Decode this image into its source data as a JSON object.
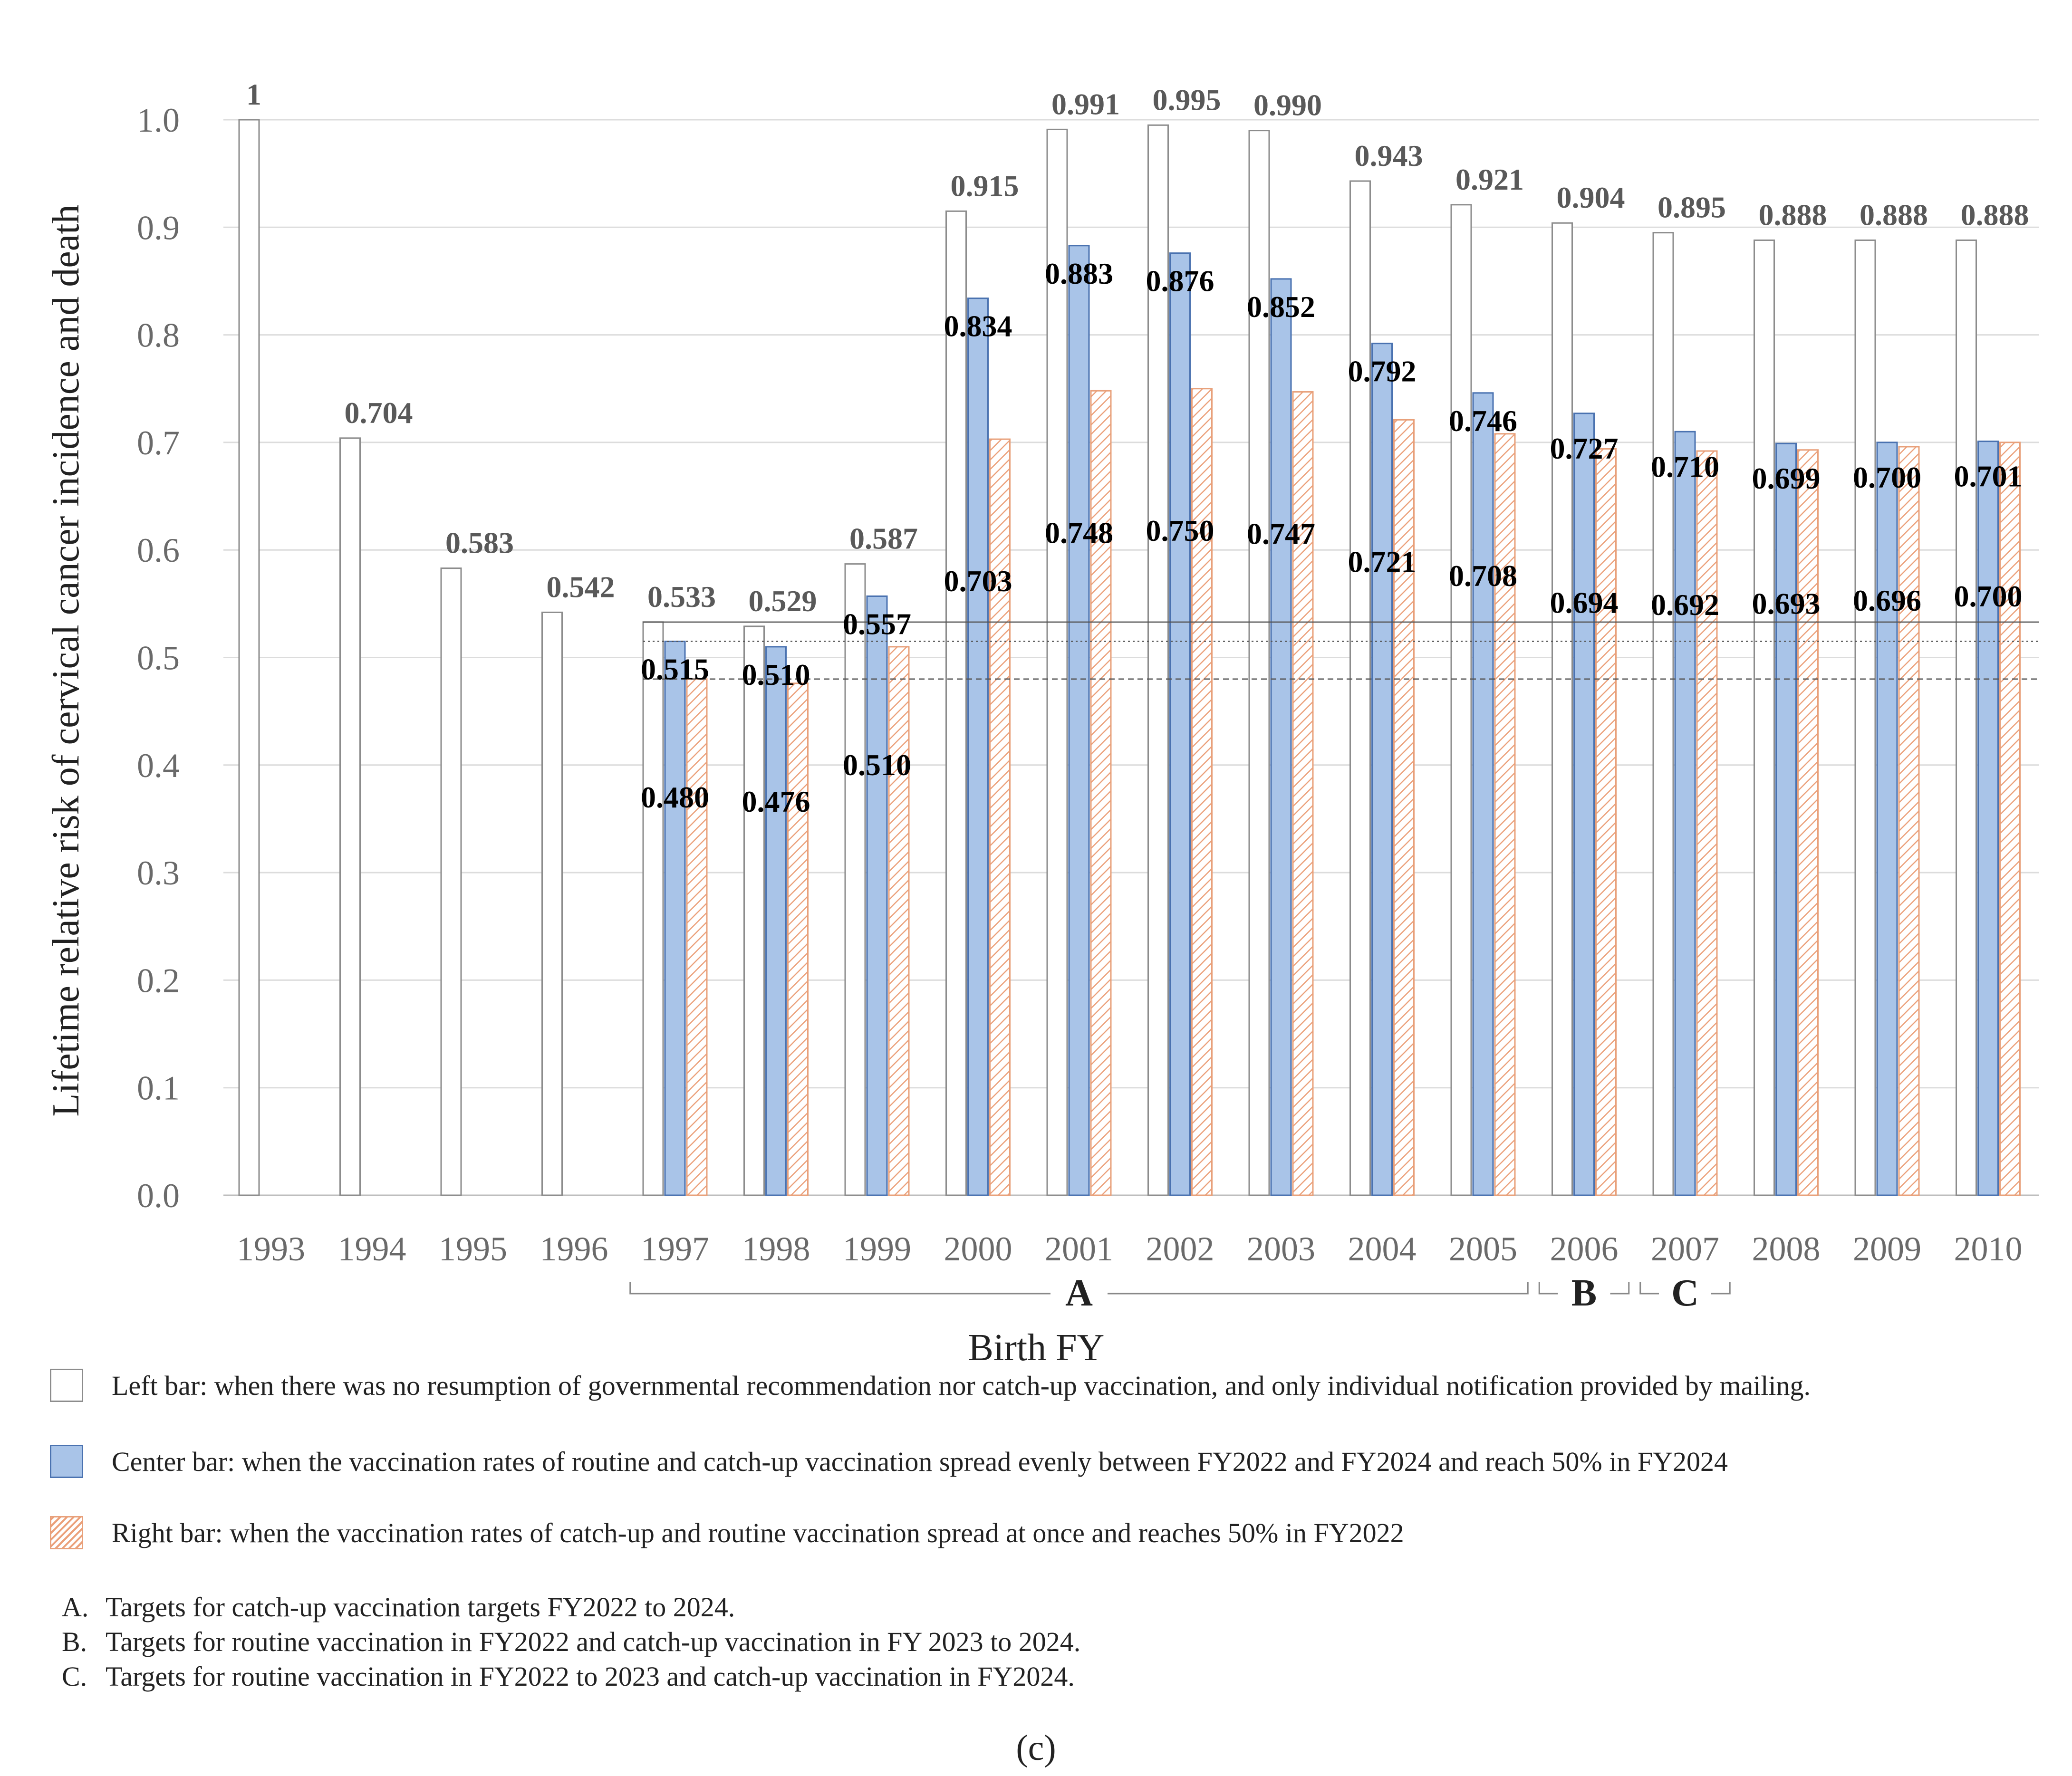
{
  "chart_data": {
    "type": "bar",
    "ylabel": "Lifetime relative risk of cervical cancer incidence and death",
    "xlabel": "Birth FY",
    "ylim": [
      0,
      1.0
    ],
    "yticks": [
      "0.0",
      "0.1",
      "0.2",
      "0.3",
      "0.4",
      "0.5",
      "0.6",
      "0.7",
      "0.8",
      "0.9",
      "1.0"
    ],
    "categories": [
      "1993",
      "1994",
      "1995",
      "1996",
      "1997",
      "1998",
      "1999",
      "2000",
      "2001",
      "2002",
      "2003",
      "2004",
      "2005",
      "2006",
      "2007",
      "2008",
      "2009",
      "2010"
    ],
    "series": [
      {
        "name": "Left bar",
        "values": [
          1,
          0.704,
          0.583,
          0.542,
          0.533,
          0.529,
          0.587,
          0.915,
          0.991,
          0.995,
          0.99,
          0.943,
          0.921,
          0.904,
          0.895,
          0.888,
          0.888,
          0.888
        ],
        "labels": [
          "1",
          "0.704",
          "0.583",
          "0.542",
          "0.533",
          "0.529",
          "0.587",
          "0.915",
          "0.991",
          "0.995",
          "0.990",
          "0.943",
          "0.921",
          "0.904",
          "0.895",
          "0.888",
          "0.888",
          "0.888"
        ]
      },
      {
        "name": "Center bar",
        "values": [
          null,
          null,
          null,
          null,
          0.515,
          0.51,
          0.557,
          0.834,
          0.883,
          0.876,
          0.852,
          0.792,
          0.746,
          0.727,
          0.71,
          0.699,
          0.7,
          0.701
        ],
        "labels": [
          null,
          null,
          null,
          null,
          "0.515",
          "0.510",
          "0.557",
          "0.834",
          "0.883",
          "0.876",
          "0.852",
          "0.792",
          "0.746",
          "0.727",
          "0.710",
          "0.699",
          "0.700",
          "0.701"
        ]
      },
      {
        "name": "Right bar",
        "values": [
          null,
          null,
          null,
          null,
          0.48,
          0.476,
          0.51,
          0.703,
          0.748,
          0.75,
          0.747,
          0.721,
          0.708,
          0.694,
          0.692,
          0.693,
          0.696,
          0.7
        ],
        "labels": [
          null,
          null,
          null,
          null,
          "0.480",
          "0.476",
          "0.510",
          "0.703",
          "0.748",
          "0.750",
          "0.747",
          "0.721",
          "0.708",
          "0.694",
          "0.692",
          "0.693",
          "0.696",
          "0.700"
        ]
      }
    ],
    "reference_lines": [
      {
        "value": 0.533,
        "style": "solid"
      },
      {
        "value": 0.515,
        "style": "dotted"
      },
      {
        "value": 0.48,
        "style": "dashed"
      }
    ],
    "groups": [
      {
        "label": "A",
        "from": "1997",
        "to": "2005"
      },
      {
        "label": "B",
        "from": "2006",
        "to": "2006"
      },
      {
        "label": "C",
        "from": "2007",
        "to": "2007"
      }
    ],
    "colors": {
      "left_fill": "#ffffff",
      "left_stroke": "#8c8c8c",
      "center_fill": "#a9c4e8",
      "center_stroke": "#4a72b0",
      "right_stroke": "#e8a07a",
      "right_hatch": "#eba07a"
    }
  },
  "legend": {
    "left": "Left bar: when there was no resumption of governmental recommendation nor catch-up vaccination, and only individual notification provided by mailing.",
    "center": "Center bar: when the vaccination rates of routine and catch-up vaccination spread evenly between FY2022 and FY2024 and reach 50% in FY2024",
    "right": "Right bar: when the vaccination rates of catch-up and routine vaccination spread at once and reaches 50% in FY2022"
  },
  "notes": [
    {
      "letter": "A.",
      "text": "Targets for catch-up vaccination targets FY2022 to 2024."
    },
    {
      "letter": "B.",
      "text": "Targets for routine vaccination in FY2022 and catch-up vaccination in FY 2023 to 2024."
    },
    {
      "letter": "C.",
      "text": "Targets for routine vaccination in FY2022 to 2023 and catch-up vaccination in FY2024."
    }
  ],
  "caption": "(c)"
}
